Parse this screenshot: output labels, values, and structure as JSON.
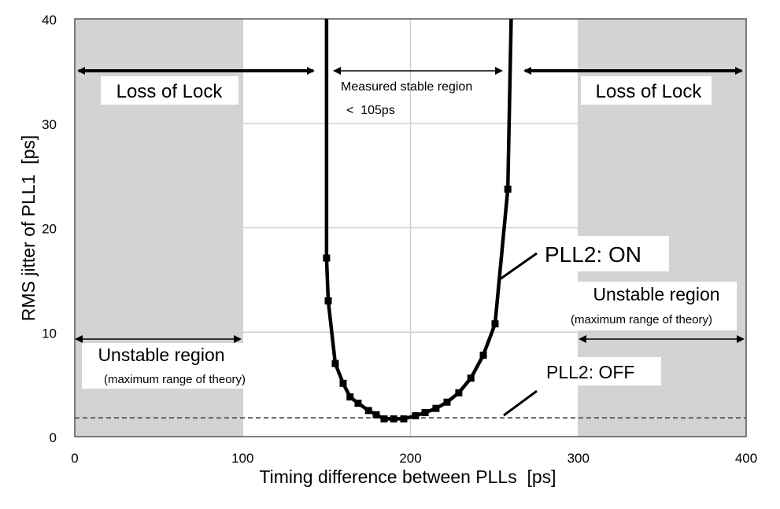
{
  "chart_data": {
    "type": "line",
    "title": "",
    "xlabel": "Timing difference between PLLs  [ps]",
    "ylabel": "RMS jitter of PLL1  [ps]",
    "xlim": [
      0,
      400
    ],
    "ylim": [
      0,
      40
    ],
    "x_ticks": [
      "0",
      "100",
      "200",
      "300",
      "400"
    ],
    "y_ticks": [
      "0",
      "10",
      "20",
      "30",
      "40"
    ],
    "grid": true,
    "shaded_regions": [
      [
        0,
        100
      ],
      [
        300,
        400
      ]
    ],
    "series": [
      {
        "name": "PLL2: ON",
        "style": "solid-markers",
        "x": [
          150,
          150,
          151,
          155.2,
          159.9,
          164,
          168.8,
          175,
          179.6,
          184.3,
          190,
          196,
          203,
          208.7,
          215.2,
          221.8,
          228.8,
          236,
          243.4,
          250.4,
          258,
          260
        ],
        "y": [
          40,
          17.1,
          13.0,
          7.0,
          5.1,
          3.8,
          3.2,
          2.5,
          2.1,
          1.7,
          1.7,
          1.7,
          2.0,
          2.3,
          2.7,
          3.3,
          4.2,
          5.6,
          7.8,
          10.8,
          23.7,
          40
        ]
      },
      {
        "name": "PLL2: OFF",
        "style": "dashed",
        "x": [
          0,
          400
        ],
        "y": [
          1.8,
          1.8
        ]
      }
    ],
    "annotations": {
      "loss_left": "Loss of Lock",
      "loss_right": "Loss of Lock",
      "stable": "Measured stable region",
      "stable_value": "<  105ps",
      "pll_on": "PLL2: ON",
      "pll_off": "PLL2: OFF",
      "unstable_left": "Unstable region",
      "unstable_left_sub": "(maximum range of theory)",
      "unstable_right": "Unstable region",
      "unstable_right_sub": "(maximum range of theory)"
    },
    "colors": {
      "shade": "#d3d3d3",
      "line": "#000000",
      "grid": "#d0d0d0",
      "dash": "#666666"
    }
  }
}
